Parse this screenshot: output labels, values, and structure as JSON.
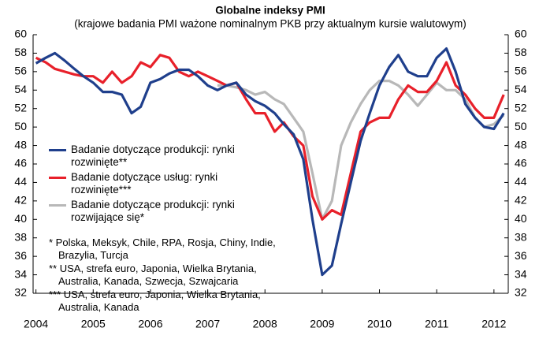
{
  "chart_data": {
    "type": "line",
    "title": "Globalne indeksy PMI",
    "subtitle": "(krajowe badania PMI ważone nominalnym PKB przy aktualnym kursie walutowym)",
    "x": [
      2004,
      2004.17,
      2004.33,
      2004.5,
      2004.67,
      2004.83,
      2005,
      2005.17,
      2005.33,
      2005.5,
      2005.67,
      2005.83,
      2006,
      2006.17,
      2006.33,
      2006.5,
      2006.67,
      2006.83,
      2007,
      2007.17,
      2007.33,
      2007.5,
      2007.67,
      2007.83,
      2008,
      2008.17,
      2008.33,
      2008.5,
      2008.67,
      2008.83,
      2009,
      2009.17,
      2009.33,
      2009.5,
      2009.67,
      2009.83,
      2010,
      2010.17,
      2010.33,
      2010.5,
      2010.67,
      2010.83,
      2011,
      2011.17,
      2011.33,
      2011.5,
      2011.67,
      2011.83,
      2012,
      2012.17
    ],
    "series": [
      {
        "name": "Badanie dotyczące produkcji: rynki rozwinięte**",
        "color": "#1f3f8c",
        "values": [
          56.9,
          57.5,
          58,
          57.2,
          56.3,
          55.5,
          54.8,
          53.8,
          53.8,
          53.5,
          51.5,
          52.2,
          54.8,
          55.2,
          55.8,
          56.2,
          56.2,
          55.5,
          54.5,
          54,
          54.5,
          54.8,
          53.5,
          52.8,
          52.3,
          51.5,
          50.3,
          49.2,
          46.5,
          40,
          34,
          35,
          39.5,
          44,
          48.5,
          51.5,
          54.5,
          56.5,
          57.8,
          56,
          55.5,
          55.5,
          57.5,
          58.5,
          56,
          52.5,
          51,
          50,
          49.8,
          51.5
        ]
      },
      {
        "name": "Badanie dotyczące usług: rynki rozwinięte***",
        "color": "#e8202a",
        "values": [
          57.5,
          57,
          56.3,
          56,
          55.7,
          55.5,
          55.5,
          54.8,
          56,
          54.8,
          55.5,
          57,
          56.5,
          57.8,
          57.5,
          56,
          55.5,
          56,
          55.5,
          55,
          54.5,
          54.8,
          53,
          51.5,
          51.5,
          49.5,
          50.5,
          49,
          48,
          42.5,
          40,
          41,
          40.5,
          45,
          49.5,
          50.5,
          51,
          51,
          53,
          54.5,
          53.8,
          53.8,
          55,
          57,
          54.5,
          53.5,
          52,
          51,
          51,
          53.5
        ]
      },
      {
        "name": "Badanie dotyczące produkcji: rynki rozwijające się*",
        "color": "#b8b8b8",
        "values": [
          null,
          null,
          null,
          null,
          null,
          null,
          null,
          null,
          null,
          null,
          null,
          null,
          null,
          null,
          null,
          null,
          null,
          null,
          null,
          54.5,
          54.5,
          54.3,
          54,
          53.5,
          53.8,
          53,
          52.5,
          51,
          49.5,
          45,
          40,
          42,
          48,
          50.5,
          52.5,
          54,
          55,
          55,
          54.5,
          53.5,
          52.3,
          53.5,
          54.8,
          54,
          54,
          53,
          51,
          50,
          50.3,
          51.3
        ]
      }
    ],
    "annotations": [
      "* Polska, Meksyk, Chile, RPA, Rosja, Chiny, Indie, Brazylia, Turcja",
      "** USA, strefa euro, Japonia, Wielka Brytania, Australia, Kanada, Szwecja, Szwajcaria",
      "*** USA, strefa euro, Japonia, Wielka Brytania, Australia, Kanada"
    ],
    "xlim": [
      2003.95,
      2012.25
    ],
    "xticks": [
      2004,
      2005,
      2006,
      2007,
      2008,
      2009,
      2010,
      2011,
      2012
    ],
    "ylim": [
      32,
      60
    ],
    "yticks": [
      32,
      34,
      36,
      38,
      40,
      42,
      44,
      46,
      48,
      50,
      52,
      54,
      56,
      58,
      60
    ],
    "y2lim": [
      32,
      60
    ],
    "y2ticks": [
      32,
      34,
      36,
      38,
      40,
      42,
      44,
      46,
      48,
      50,
      52,
      54,
      56,
      58,
      60
    ]
  }
}
